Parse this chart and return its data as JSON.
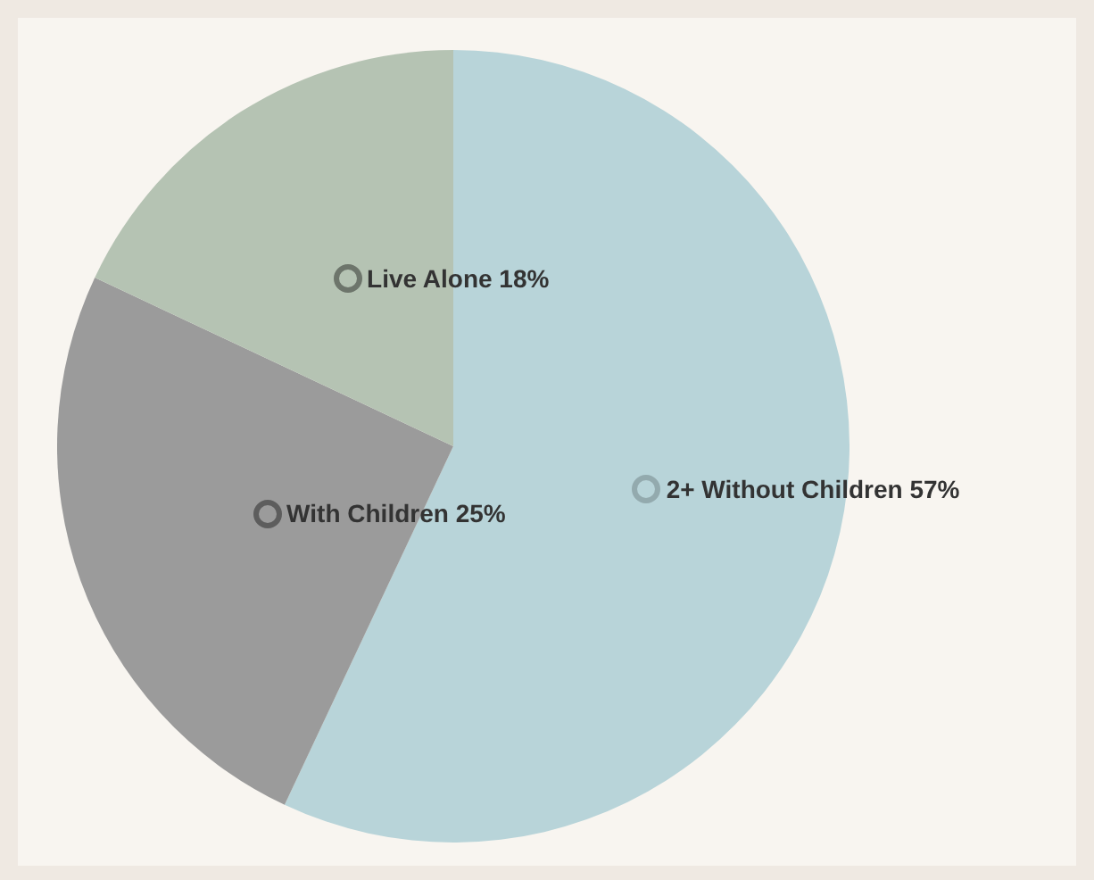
{
  "chart_data": {
    "type": "pie",
    "categories": [
      "2+ Without Children",
      "With Children",
      "Live Alone"
    ],
    "values": [
      57,
      25,
      18
    ],
    "colors": [
      "#b8d4d9",
      "#9b9b9b",
      "#b5c3b3"
    ],
    "value_labels": [
      "57%",
      "25%",
      "18%"
    ],
    "legend": false
  }
}
